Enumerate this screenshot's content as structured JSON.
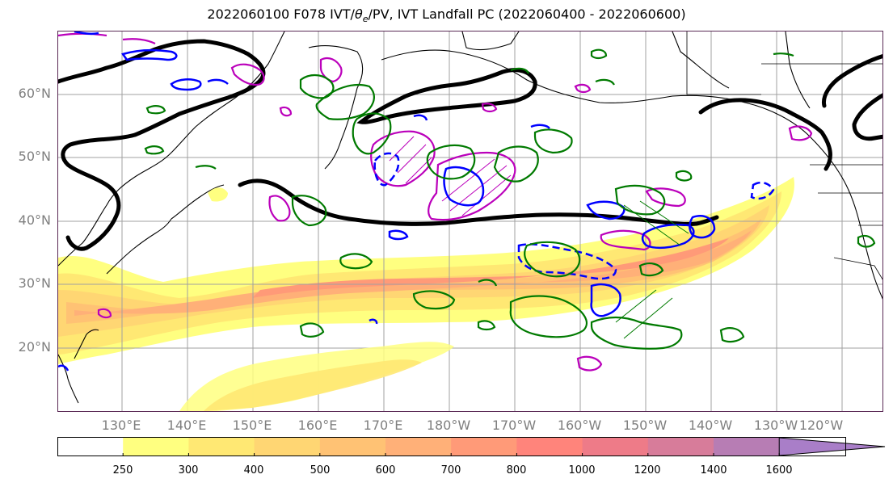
{
  "title": {
    "prefix": "2022060100 F078 IVT/",
    "theta": "θ",
    "theta_sub": "e",
    "suffix": "/PV, IVT Landfall PC (2022060400 - 2022060600)"
  },
  "map": {
    "lat_labels": [
      "60°N",
      "50°N",
      "40°N",
      "30°N",
      "20°N"
    ],
    "lon_labels": [
      "130°E",
      "140°E",
      "150°E",
      "160°E",
      "170°E",
      "180°W",
      "170°W",
      "160°W",
      "150°W",
      "140°W",
      "130°W",
      "120°W"
    ],
    "ivt_fill_colors": [
      "#ffffff",
      "#ffff80",
      "#ffe873",
      "#ffd673",
      "#ffc274",
      "#ffb078",
      "#ff9a78",
      "#ff847b",
      "#ee7b88",
      "#d77c9a",
      "#b77db4",
      "#a97ec8"
    ],
    "contour_colors": {
      "thetae": "#000000",
      "pv_positive": "#bb00bb",
      "pv_negative": "#0000ff",
      "green": "#007a00"
    }
  },
  "colorbar": {
    "tick_labels": [
      "250",
      "300",
      "400",
      "500",
      "600",
      "700",
      "800",
      "1000",
      "1200",
      "1400",
      "1600"
    ]
  }
}
